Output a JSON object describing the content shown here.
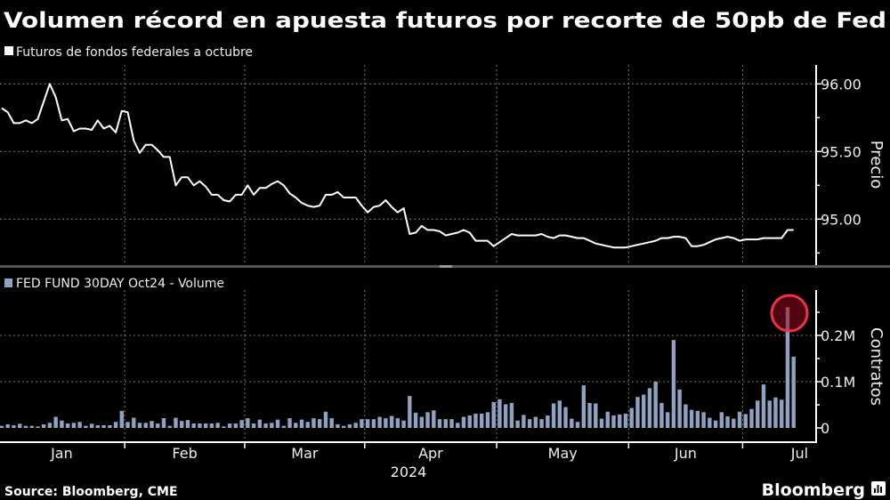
{
  "title": "Volumen récord en apuesta futuros por recorte de 50pb de Fed",
  "source": "Source: Bloomberg, CME",
  "brand": "Bloomberg",
  "colors": {
    "background": "#000000",
    "price_line": "#ffffff",
    "volume_bars": "#8ea2c2",
    "highlight": "#e8334a"
  },
  "chart_data": [
    {
      "type": "line",
      "legend": "Futuros de fondos federales a octubre",
      "ylabel": "Precio",
      "yticks": [
        "96.00",
        "95.50",
        "95.00"
      ],
      "ytick_values": [
        96.0,
        95.5,
        95.0
      ],
      "ylim": [
        94.66,
        96.14
      ],
      "grid": true,
      "legend_position": "top-left",
      "axis_side": "right",
      "series": [
        {
          "name": "Futuros de fondos federales a octubre",
          "values": [
            95.82,
            95.79,
            95.71,
            95.71,
            95.73,
            95.71,
            95.74,
            95.87,
            96.0,
            95.9,
            95.73,
            95.74,
            95.65,
            95.67,
            95.67,
            95.66,
            95.73,
            95.67,
            95.69,
            95.64,
            95.8,
            95.79,
            95.58,
            95.49,
            95.55,
            95.55,
            95.51,
            95.46,
            95.46,
            95.25,
            95.31,
            95.31,
            95.25,
            95.28,
            95.24,
            95.18,
            95.18,
            95.14,
            95.13,
            95.18,
            95.18,
            95.25,
            95.18,
            95.23,
            95.23,
            95.26,
            95.28,
            95.25,
            95.19,
            95.16,
            95.12,
            95.1,
            95.09,
            95.1,
            95.18,
            95.18,
            95.2,
            95.16,
            95.16,
            95.16,
            95.1,
            95.05,
            95.09,
            95.1,
            95.14,
            95.09,
            95.05,
            95.08,
            94.89,
            94.9,
            94.95,
            94.92,
            94.92,
            94.91,
            94.88,
            94.89,
            94.9,
            94.92,
            94.9,
            94.84,
            94.84,
            94.84,
            94.8,
            94.83,
            94.86,
            94.89,
            94.88,
            94.88,
            94.88,
            94.88,
            94.89,
            94.87,
            94.86,
            94.88,
            94.88,
            94.87,
            94.86,
            94.86,
            94.84,
            94.82,
            94.81,
            94.8,
            94.79,
            94.79,
            94.79,
            94.8,
            94.81,
            94.82,
            94.83,
            94.84,
            94.86,
            94.86,
            94.87,
            94.87,
            94.86,
            94.8,
            94.8,
            94.81,
            94.83,
            94.85,
            94.86,
            94.87,
            94.86,
            94.84,
            94.85,
            94.85,
            94.85,
            94.86,
            94.86,
            94.86,
            94.86,
            94.92,
            94.92
          ]
        }
      ]
    },
    {
      "type": "bar",
      "legend": "FED FUND 30DAY Oct24 - Volume",
      "ylabel": "Contratos",
      "yticks": [
        "0",
        "0.1M",
        "0.2M"
      ],
      "ytick_values": [
        0,
        100000,
        200000
      ],
      "ylim": [
        0,
        298000
      ],
      "grid": true,
      "legend_position": "top-left",
      "axis_side": "right",
      "highlight": {
        "date": "2024-07-11",
        "marker": "red circle"
      },
      "series": [
        {
          "name": "FED FUND 30DAY Oct24 - Volume",
          "values": [
            4500,
            7700,
            5800,
            9000,
            4500,
            4500,
            3200,
            7700,
            11000,
            24000,
            16000,
            9600,
            11000,
            13000,
            4500,
            9000,
            5800,
            5800,
            5800,
            13000,
            37000,
            13000,
            22000,
            11000,
            11000,
            15000,
            9600,
            21000,
            4500,
            22000,
            15000,
            17000,
            9600,
            9600,
            9600,
            9600,
            11000,
            3200,
            9600,
            9600,
            17000,
            21000,
            9600,
            18000,
            9600,
            11000,
            18000,
            4500,
            21000,
            11000,
            18000,
            13000,
            21000,
            19000,
            35000,
            21000,
            7700,
            4500,
            7700,
            11000,
            19000,
            19000,
            19000,
            24000,
            21000,
            26000,
            21000,
            16000,
            69000,
            33000,
            24000,
            34000,
            38000,
            19000,
            19000,
            19000,
            11000,
            24000,
            27000,
            31000,
            31000,
            34000,
            56000,
            62000,
            51000,
            54000,
            16000,
            28000,
            19000,
            24000,
            19000,
            27000,
            53000,
            59000,
            45000,
            20000,
            13000,
            92000,
            54000,
            53000,
            20000,
            35000,
            27000,
            29000,
            31000,
            43000,
            67000,
            72000,
            86000,
            100000,
            54000,
            34000,
            190000,
            83000,
            51000,
            39000,
            37000,
            34000,
            22000,
            16000,
            34000,
            25000,
            20000,
            35000,
            30000,
            41000,
            59000,
            94000,
            59000,
            66000,
            61000,
            261000,
            154000
          ]
        }
      ]
    }
  ],
  "x_axis": {
    "year_label": "2024",
    "months": [
      "Jan",
      "Feb",
      "Mar",
      "Apr",
      "May",
      "Jun",
      "Jul"
    ],
    "dates": [
      "2024-01-02",
      "2024-01-03",
      "2024-01-04",
      "2024-01-05",
      "2024-01-08",
      "2024-01-09",
      "2024-01-10",
      "2024-01-11",
      "2024-01-12",
      "2024-01-16",
      "2024-01-17",
      "2024-01-18",
      "2024-01-19",
      "2024-01-22",
      "2024-01-23",
      "2024-01-24",
      "2024-01-25",
      "2024-01-26",
      "2024-01-29",
      "2024-01-30",
      "2024-01-31",
      "2024-02-01",
      "2024-02-02",
      "2024-02-05",
      "2024-02-06",
      "2024-02-07",
      "2024-02-08",
      "2024-02-09",
      "2024-02-12",
      "2024-02-13",
      "2024-02-14",
      "2024-02-15",
      "2024-02-16",
      "2024-02-20",
      "2024-02-21",
      "2024-02-22",
      "2024-02-23",
      "2024-02-26",
      "2024-02-27",
      "2024-02-28",
      "2024-02-29",
      "2024-03-01",
      "2024-03-04",
      "2024-03-05",
      "2024-03-06",
      "2024-03-07",
      "2024-03-08",
      "2024-03-11",
      "2024-03-12",
      "2024-03-13",
      "2024-03-14",
      "2024-03-15",
      "2024-03-18",
      "2024-03-19",
      "2024-03-20",
      "2024-03-21",
      "2024-03-22",
      "2024-03-25",
      "2024-03-26",
      "2024-03-27",
      "2024-03-28",
      "2024-04-01",
      "2024-04-02",
      "2024-04-03",
      "2024-04-04",
      "2024-04-05",
      "2024-04-08",
      "2024-04-09",
      "2024-04-10",
      "2024-04-11",
      "2024-04-12",
      "2024-04-15",
      "2024-04-16",
      "2024-04-17",
      "2024-04-18",
      "2024-04-19",
      "2024-04-22",
      "2024-04-23",
      "2024-04-24",
      "2024-04-25",
      "2024-04-26",
      "2024-04-29",
      "2024-04-30",
      "2024-05-01",
      "2024-05-02",
      "2024-05-03",
      "2024-05-06",
      "2024-05-07",
      "2024-05-08",
      "2024-05-09",
      "2024-05-10",
      "2024-05-13",
      "2024-05-14",
      "2024-05-15",
      "2024-05-16",
      "2024-05-17",
      "2024-05-20",
      "2024-05-21",
      "2024-05-22",
      "2024-05-23",
      "2024-05-24",
      "2024-05-28",
      "2024-05-29",
      "2024-05-30",
      "2024-05-31",
      "2024-06-03",
      "2024-06-04",
      "2024-06-05",
      "2024-06-06",
      "2024-06-07",
      "2024-06-10",
      "2024-06-11",
      "2024-06-12",
      "2024-06-13",
      "2024-06-14",
      "2024-06-17",
      "2024-06-18",
      "2024-06-20",
      "2024-06-21",
      "2024-06-24",
      "2024-06-25",
      "2024-06-26",
      "2024-06-27",
      "2024-06-28",
      "2024-07-01",
      "2024-07-02",
      "2024-07-03",
      "2024-07-05",
      "2024-07-08",
      "2024-07-09",
      "2024-07-10",
      "2024-07-11",
      "2024-07-12"
    ]
  }
}
